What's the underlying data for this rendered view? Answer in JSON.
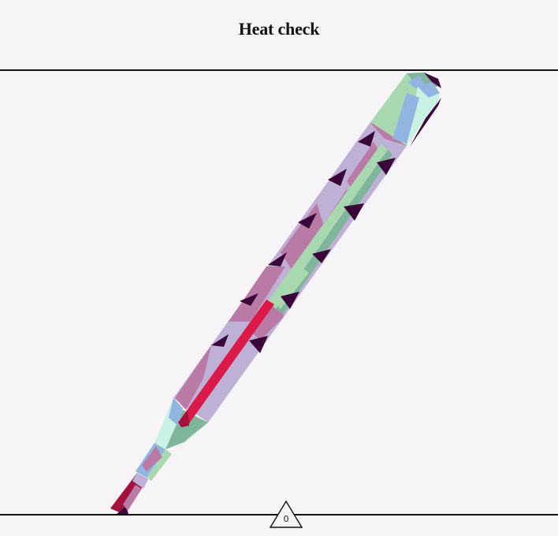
{
  "header": {
    "title": "Heat check"
  },
  "thermometer": {
    "mercury_level": 0.42
  },
  "counter": {
    "value": "0"
  },
  "colors": {
    "background": "#f7f4f7",
    "lavender": "#bfb0d6",
    "mauve": "#b97aa6",
    "dark_purple": "#3a0639",
    "mint": "#a8d8b0",
    "sea_green": "#7fb69b",
    "sky_blue": "#8fb5e0",
    "pale_mint": "#c9f2e3",
    "crimson": "#dc1a49",
    "dark_crimson": "#a3123c"
  }
}
